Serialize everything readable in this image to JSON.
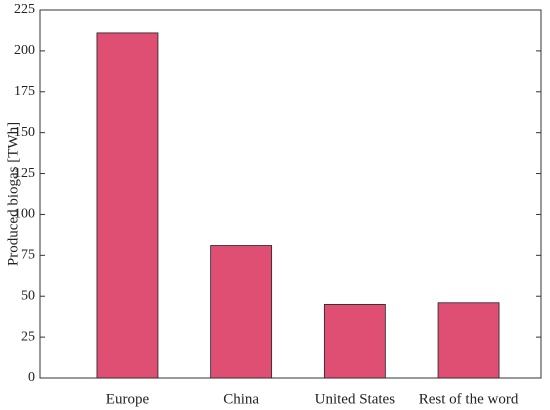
{
  "chart_data": {
    "type": "bar",
    "y_label": "Produced biogas [TWh]",
    "categories": [
      "Europe",
      "China",
      "United States",
      "Rest of the word"
    ],
    "values": [
      211,
      81,
      45,
      46
    ],
    "color": "#df4e73",
    "ylim": [
      0,
      225
    ],
    "yticks": [
      0,
      25,
      50,
      75,
      100,
      125,
      150,
      175,
      200,
      225
    ]
  }
}
